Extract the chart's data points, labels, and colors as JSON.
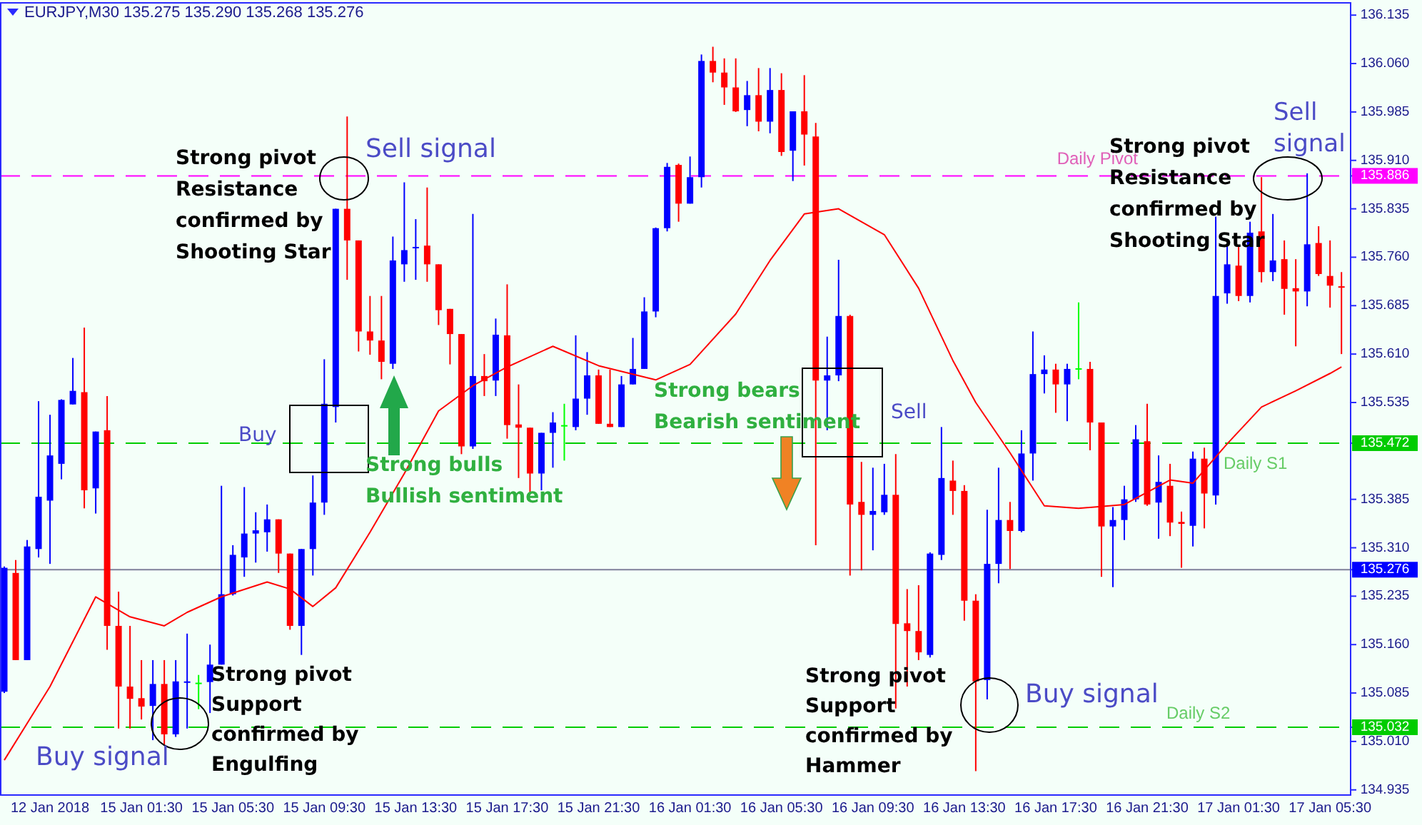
{
  "chart_data": {
    "type": "candlestick",
    "title": "EURJPY,M30  135.275 135.290 135.268 135.276",
    "categories": [
      null,
      null,
      null,
      null,
      "12 Jan 2018",
      null,
      null,
      null,
      null,
      null,
      null,
      null,
      "15 Jan 01:30",
      null,
      null,
      null,
      null,
      null,
      null,
      null,
      "15 Jan 05:30",
      null,
      null,
      null,
      null,
      null,
      null,
      null,
      "15 Jan 09:30",
      null,
      null,
      null,
      null,
      null,
      null,
      null,
      "15 Jan 13:30",
      null,
      null,
      null,
      null,
      null,
      null,
      null,
      "15 Jan 17:30",
      null,
      null,
      null,
      null,
      null,
      null,
      null,
      "15 Jan 21:30",
      null,
      null,
      null,
      null,
      null,
      null,
      null,
      "16 Jan 01:30",
      null,
      null,
      null,
      null,
      null,
      null,
      null,
      "16 Jan 05:30",
      null,
      null,
      null,
      null,
      null,
      null,
      null,
      "16 Jan 09:30",
      null,
      null,
      null,
      null,
      null,
      null,
      null,
      "16 Jan 13:30",
      null,
      null,
      null,
      null,
      null,
      null,
      null,
      "16 Jan 17:30",
      null,
      null,
      null,
      null,
      null,
      null,
      null,
      "16 Jan 21:30",
      null,
      null,
      null,
      null,
      null,
      null,
      null,
      "17 Jan 01:30",
      null,
      null,
      null,
      null,
      null,
      null,
      null,
      "17 Jan 05:30",
      null
    ],
    "ohlc": [
      [
        135.087,
        135.281,
        135.085,
        135.279
      ],
      [
        135.271,
        135.291,
        135.136,
        135.136
      ],
      [
        135.136,
        135.322,
        135.136,
        135.312
      ],
      [
        135.308,
        135.537,
        135.295,
        135.389
      ],
      [
        135.383,
        135.516,
        135.285,
        135.453
      ],
      [
        135.44,
        135.54,
        135.416,
        135.539
      ],
      [
        135.532,
        135.604,
        135.532,
        135.553
      ],
      [
        135.551,
        135.651,
        135.371,
        135.399
      ],
      [
        135.402,
        135.49,
        135.363,
        135.49
      ],
      [
        135.492,
        135.545,
        135.152,
        135.189
      ],
      [
        135.189,
        135.242,
        135.03,
        135.095
      ],
      [
        135.095,
        135.189,
        135.03,
        135.076
      ],
      [
        135.077,
        135.136,
        135.044,
        135.064
      ],
      [
        135.065,
        135.136,
        135.012,
        135.099
      ],
      [
        135.099,
        135.136,
        135.005,
        135.021
      ],
      [
        135.021,
        135.136,
        135.017,
        135.103
      ],
      [
        135.101,
        135.177,
        135.03,
        135.103
      ],
      [
        135.101,
        135.113,
        135.06,
        135.101
      ],
      [
        135.102,
        135.16,
        135.054,
        135.129
      ],
      [
        135.129,
        135.406,
        135.129,
        135.238
      ],
      [
        135.238,
        135.314,
        135.236,
        135.299
      ],
      [
        135.295,
        135.404,
        135.265,
        135.332
      ],
      [
        135.332,
        135.365,
        135.287,
        135.337
      ],
      [
        135.334,
        135.377,
        135.304,
        135.354
      ],
      [
        135.354,
        135.354,
        135.271,
        135.301
      ],
      [
        135.301,
        135.301,
        135.183,
        135.189
      ],
      [
        135.189,
        135.308,
        135.144,
        135.308
      ],
      [
        135.308,
        135.422,
        135.267,
        135.38
      ],
      [
        135.38,
        135.602,
        135.361,
        135.533
      ],
      [
        135.528,
        135.835,
        135.504,
        135.835
      ],
      [
        135.835,
        135.978,
        135.725,
        135.786
      ],
      [
        135.786,
        135.786,
        135.614,
        135.645
      ],
      [
        135.645,
        135.7,
        135.609,
        135.631
      ],
      [
        135.631,
        135.7,
        135.571,
        135.598
      ],
      [
        135.595,
        135.792,
        135.587,
        135.755
      ],
      [
        135.749,
        135.876,
        135.722,
        135.771
      ],
      [
        135.775,
        135.819,
        135.725,
        135.776
      ],
      [
        135.778,
        135.868,
        135.722,
        135.749
      ],
      [
        135.749,
        135.749,
        135.655,
        135.678
      ],
      [
        135.68,
        135.68,
        135.594,
        135.641
      ],
      [
        135.641,
        135.641,
        135.455,
        135.467
      ],
      [
        135.467,
        135.827,
        135.463,
        135.576
      ],
      [
        135.576,
        135.61,
        135.545,
        135.568
      ],
      [
        135.569,
        135.665,
        135.545,
        135.64
      ],
      [
        135.639,
        135.718,
        135.479,
        135.5
      ],
      [
        135.501,
        135.563,
        135.418,
        135.496
      ],
      [
        135.496,
        135.496,
        135.396,
        135.425
      ],
      [
        135.425,
        135.488,
        135.399,
        135.488
      ],
      [
        135.488,
        135.52,
        135.434,
        135.504
      ],
      [
        135.5,
        135.533,
        135.445,
        135.5
      ],
      [
        135.497,
        135.639,
        135.492,
        135.541
      ],
      [
        135.541,
        135.613,
        135.516,
        135.577
      ],
      [
        135.577,
        135.586,
        135.502,
        135.502
      ],
      [
        135.502,
        135.586,
        135.497,
        135.497
      ],
      [
        135.497,
        135.576,
        135.497,
        135.563
      ],
      [
        135.563,
        135.635,
        135.563,
        135.587
      ],
      [
        135.587,
        135.698,
        135.587,
        135.676
      ],
      [
        135.676,
        135.806,
        135.667,
        135.805
      ],
      [
        135.805,
        135.906,
        135.8,
        135.9
      ],
      [
        135.903,
        135.905,
        135.815,
        135.843
      ],
      [
        135.843,
        135.916,
        135.843,
        135.884
      ],
      [
        135.884,
        136.074,
        135.868,
        136.064
      ],
      [
        136.064,
        136.086,
        136.031,
        136.046
      ],
      [
        136.046,
        136.068,
        135.996,
        136.023
      ],
      [
        136.023,
        136.068,
        135.985,
        135.986
      ],
      [
        135.988,
        136.033,
        135.963,
        136.011
      ],
      [
        136.011,
        136.053,
        135.955,
        135.97
      ],
      [
        135.97,
        136.053,
        135.952,
        136.019
      ],
      [
        136.019,
        136.045,
        135.917,
        135.923
      ],
      [
        135.925,
        135.986,
        135.878,
        135.986
      ],
      [
        135.986,
        136.042,
        135.902,
        135.95
      ],
      [
        135.947,
        135.968,
        135.314,
        135.569
      ],
      [
        135.569,
        135.637,
        135.492,
        135.577
      ],
      [
        135.577,
        135.756,
        135.568,
        135.669
      ],
      [
        135.669,
        135.671,
        135.267,
        135.377
      ],
      [
        135.381,
        135.443,
        135.275,
        135.361
      ],
      [
        135.361,
        135.434,
        135.306,
        135.367
      ],
      [
        135.365,
        135.44,
        135.361,
        135.392
      ],
      [
        135.392,
        135.455,
        135.061,
        135.192
      ],
      [
        135.193,
        135.246,
        135.095,
        135.181
      ],
      [
        135.181,
        135.252,
        135.136,
        135.148
      ],
      [
        135.144,
        135.303,
        135.14,
        135.301
      ],
      [
        135.299,
        135.497,
        135.291,
        135.418
      ],
      [
        135.414,
        135.445,
        135.361,
        135.398
      ],
      [
        135.398,
        135.407,
        135.197,
        135.228
      ],
      [
        135.228,
        135.238,
        134.964,
        135.103
      ],
      [
        135.105,
        135.369,
        135.075,
        135.285
      ],
      [
        135.285,
        135.434,
        135.255,
        135.353
      ],
      [
        135.353,
        135.381,
        135.277,
        135.336
      ],
      [
        135.336,
        135.492,
        135.334,
        135.456
      ],
      [
        135.456,
        135.645,
        135.414,
        135.579
      ],
      [
        135.579,
        135.608,
        135.549,
        135.586
      ],
      [
        135.586,
        135.595,
        135.519,
        135.563
      ],
      [
        135.563,
        135.595,
        135.506,
        135.587
      ],
      [
        135.588,
        135.69,
        135.571,
        135.588
      ],
      [
        135.587,
        135.598,
        135.461,
        135.504
      ],
      [
        135.504,
        135.504,
        135.265,
        135.343
      ],
      [
        135.343,
        135.373,
        135.249,
        135.353
      ],
      [
        135.353,
        135.406,
        135.322,
        135.385
      ],
      [
        135.385,
        135.5,
        135.381,
        135.478
      ],
      [
        135.475,
        135.533,
        135.375,
        135.377
      ],
      [
        135.38,
        135.453,
        135.324,
        135.412
      ],
      [
        135.406,
        135.44,
        135.328,
        135.349
      ],
      [
        135.35,
        135.366,
        135.279,
        135.347
      ],
      [
        135.344,
        135.459,
        135.312,
        135.448
      ],
      [
        135.448,
        135.465,
        135.34,
        135.394
      ],
      [
        135.391,
        135.823,
        135.377,
        135.7
      ],
      [
        135.704,
        135.778,
        135.688,
        135.749
      ],
      [
        135.747,
        135.778,
        135.692,
        135.7
      ],
      [
        135.7,
        135.815,
        135.69,
        135.798
      ],
      [
        135.8,
        135.884,
        135.721,
        135.737
      ],
      [
        135.737,
        135.827,
        135.723,
        135.755
      ],
      [
        135.757,
        135.786,
        135.671,
        135.711
      ],
      [
        135.712,
        135.757,
        135.622,
        135.707
      ],
      [
        135.707,
        135.89,
        135.684,
        135.78
      ],
      [
        135.782,
        135.808,
        135.731,
        135.734
      ],
      [
        135.731,
        135.786,
        135.682,
        135.716
      ],
      [
        135.715,
        135.737,
        135.61,
        135.713
      ]
    ],
    "colors": [
      "#0000ff",
      "#ff0000",
      "#0000ff",
      "#0000ff",
      "#0000ff",
      "#0000ff",
      "#0000ff",
      "#ff0000",
      "#0000ff",
      "#ff0000",
      "#ff0000",
      "#ff0000",
      "#ff0000",
      "#0000ff",
      "#ff0000",
      "#0000ff",
      "#0000ff",
      "#00ff00",
      "#0000ff",
      "#0000ff",
      "#0000ff",
      "#0000ff",
      "#0000ff",
      "#0000ff",
      "#ff0000",
      "#ff0000",
      "#0000ff",
      "#0000ff",
      "#0000ff",
      "#0000ff",
      "#ff0000",
      "#ff0000",
      "#ff0000",
      "#ff0000",
      "#0000ff",
      "#0000ff",
      "#0000ff",
      "#ff0000",
      "#ff0000",
      "#ff0000",
      "#ff0000",
      "#0000ff",
      "#ff0000",
      "#0000ff",
      "#ff0000",
      "#ff0000",
      "#ff0000",
      "#0000ff",
      "#0000ff",
      "#00ff00",
      "#0000ff",
      "#0000ff",
      "#ff0000",
      "#ff0000",
      "#0000ff",
      "#0000ff",
      "#0000ff",
      "#0000ff",
      "#0000ff",
      "#ff0000",
      "#0000ff",
      "#0000ff",
      "#ff0000",
      "#ff0000",
      "#ff0000",
      "#0000ff",
      "#ff0000",
      "#0000ff",
      "#ff0000",
      "#0000ff",
      "#ff0000",
      "#ff0000",
      "#0000ff",
      "#0000ff",
      "#ff0000",
      "#ff0000",
      "#0000ff",
      "#0000ff",
      "#ff0000",
      "#ff0000",
      "#ff0000",
      "#0000ff",
      "#0000ff",
      "#ff0000",
      "#ff0000",
      "#ff0000",
      "#0000ff",
      "#0000ff",
      "#ff0000",
      "#0000ff",
      "#0000ff",
      "#0000ff",
      "#ff0000",
      "#0000ff",
      "#00ff00",
      "#ff0000",
      "#ff0000",
      "#0000ff",
      "#0000ff",
      "#0000ff",
      "#ff0000",
      "#0000ff",
      "#ff0000",
      "#ff0000",
      "#0000ff",
      "#ff0000",
      "#0000ff",
      "#0000ff",
      "#ff0000",
      "#0000ff",
      "#ff0000",
      "#0000ff",
      "#ff0000",
      "#ff0000",
      "#0000ff",
      "#ff0000",
      "#ff0000",
      "#ff0000"
    ],
    "series": [
      {
        "type": "line",
        "color": "#ff0000",
        "values": [
          134.981,
          null,
          null,
          null,
          135.095,
          null,
          null,
          null,
          135.234,
          null,
          null,
          135.203,
          null,
          null,
          135.189,
          null,
          135.21,
          null,
          null,
          135.234,
          null,
          null,
          null,
          135.257,
          null,
          135.246,
          null,
          135.219,
          null,
          135.248,
          null,
          null,
          135.334,
          null,
          null,
          135.425,
          null,
          null,
          135.522,
          null,
          null,
          135.561,
          null,
          null,
          135.59,
          null,
          null,
          null,
          135.622,
          null,
          null,
          null,
          135.592,
          null,
          null,
          null,
          null,
          135.57,
          null,
          null,
          135.594,
          null,
          null,
          null,
          135.672,
          null,
          null,
          135.755,
          null,
          null,
          135.827,
          null,
          null,
          135.835,
          null,
          null,
          null,
          135.795,
          null,
          null,
          135.712,
          null,
          null,
          135.6,
          null,
          135.535,
          null,
          null,
          135.457,
          null,
          null,
          135.375,
          null,
          null,
          135.371,
          null,
          null,
          null,
          135.377,
          null,
          null,
          null,
          135.415,
          null,
          135.41,
          null,
          null,
          135.471,
          null,
          null,
          135.528,
          null,
          null,
          135.553,
          null,
          null,
          135.58,
          135.59
        ]
      }
    ],
    "ylim": [
      134.927,
      136.154
    ],
    "yticks": [
      134.935,
      {
        "value": 135.01,
        "label": "135.010"
      },
      135.032,
      135.085,
      {
        "value": 135.16,
        "label": "135.160"
      },
      135.235,
      135.276,
      {
        "value": 135.31,
        "label": "135.310"
      },
      135.385,
      135.472,
      135.535,
      {
        "value": 135.61,
        "label": "135.610"
      },
      135.685,
      {
        "value": 135.76,
        "label": "135.760"
      },
      135.835,
      135.886,
      {
        "value": 135.91,
        "label": "135.910"
      },
      135.985,
      {
        "value": 136.06,
        "label": "136.060"
      },
      136.135
    ],
    "ref_lines": [
      {
        "axis": "y",
        "value": 135.886,
        "label": "Daily Pivot",
        "color": "#ff00ff",
        "line_style": "dashed"
      },
      {
        "axis": "y",
        "value": 135.472,
        "label": "Daily S1",
        "color": "#00cc00",
        "line_style": "dashed"
      },
      {
        "axis": "y",
        "value": 135.032,
        "label": "Daily S2",
        "color": "#00cc00",
        "line_style": "dashed"
      },
      {
        "axis": "y",
        "value": 135.276,
        "label": null,
        "color": "#7f7f9a",
        "line_style": "solid"
      }
    ],
    "annotations": [
      "Sell signal",
      "Strong pivot\nResistance\nconfirmed by\nShooting Star",
      "Buy",
      "Strong bulls\nBullish sentiment",
      "Strong bears\nBearish sentiment",
      "Sell",
      "Strong pivot\nSupport\nconfirmed by\nEngulfing",
      "Buy signal",
      "Strong pivot\nSupport\nconfirmed by\nHammer",
      "Buy signal",
      "Strong pivot\nResistance\nconfirmed by\nShooting Star",
      "Sell\nsignal"
    ],
    "grid": false
  }
}
